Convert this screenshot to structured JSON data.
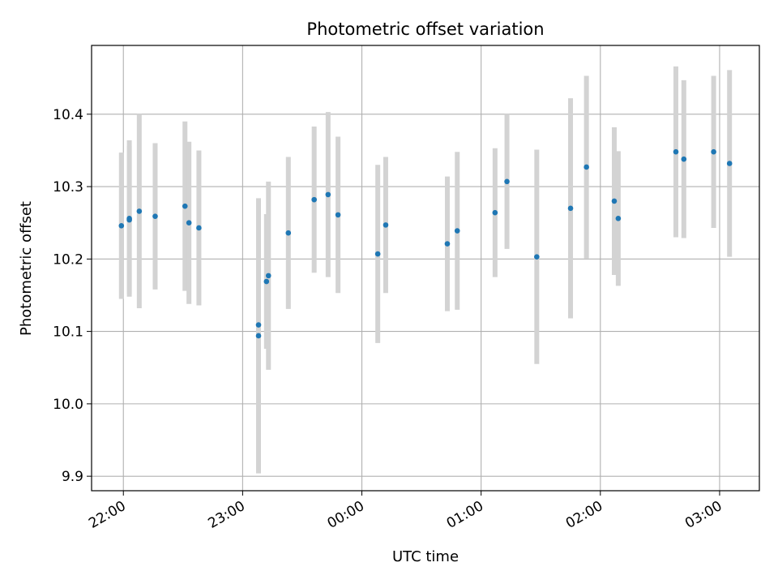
{
  "chart_data": {
    "type": "scatter",
    "title": "Photometric offset variation",
    "xlabel": "UTC time",
    "ylabel": "Photometric offset",
    "grid": true,
    "x_ticks": [
      "22:00",
      "23:00",
      "00:00",
      "01:00",
      "02:00",
      "03:00"
    ],
    "x_tick_minutes": [
      0,
      60,
      120,
      180,
      240,
      300
    ],
    "xlim_minutes": [
      -16,
      320
    ],
    "y_ticks": [
      "9.9",
      "10.0",
      "10.1",
      "10.2",
      "10.3",
      "10.4"
    ],
    "y_tick_values": [
      9.9,
      10.0,
      10.1,
      10.2,
      10.3,
      10.4
    ],
    "ylim": [
      9.88,
      10.495
    ],
    "marker_color": "#1f77b4",
    "errorbar_color": "#d3d3d3",
    "points": [
      {
        "t": "21:59",
        "y": 10.246,
        "err": 0.101
      },
      {
        "t": "22:03",
        "y": 10.256,
        "err": 0.108
      },
      {
        "t": "22:03",
        "y": 10.254,
        "err": 0.102
      },
      {
        "t": "22:08",
        "y": 10.266,
        "err": 0.134
      },
      {
        "t": "22:16",
        "y": 10.259,
        "err": 0.101
      },
      {
        "t": "22:31",
        "y": 10.273,
        "err": 0.117
      },
      {
        "t": "22:33",
        "y": 10.25,
        "err": 0.112
      },
      {
        "t": "22:38",
        "y": 10.243,
        "err": 0.107
      },
      {
        "t": "23:08",
        "y": 10.109,
        "err": 0.148
      },
      {
        "t": "23:08",
        "y": 10.094,
        "err": 0.19
      },
      {
        "t": "23:12",
        "y": 10.169,
        "err": 0.093
      },
      {
        "t": "23:13",
        "y": 10.177,
        "err": 0.13
      },
      {
        "t": "23:23",
        "y": 10.236,
        "err": 0.105
      },
      {
        "t": "23:36",
        "y": 10.282,
        "err": 0.101
      },
      {
        "t": "23:43",
        "y": 10.289,
        "err": 0.114
      },
      {
        "t": "23:48",
        "y": 10.261,
        "err": 0.108
      },
      {
        "t": "00:08",
        "y": 10.207,
        "err": 0.123
      },
      {
        "t": "00:12",
        "y": 10.247,
        "err": 0.094
      },
      {
        "t": "00:43",
        "y": 10.221,
        "err": 0.093
      },
      {
        "t": "00:48",
        "y": 10.239,
        "err": 0.109
      },
      {
        "t": "01:07",
        "y": 10.264,
        "err": 0.089
      },
      {
        "t": "01:13",
        "y": 10.307,
        "err": 0.093
      },
      {
        "t": "01:28",
        "y": 10.203,
        "err": 0.148
      },
      {
        "t": "01:45",
        "y": 10.27,
        "err": 0.152
      },
      {
        "t": "01:53",
        "y": 10.327,
        "err": 0.126
      },
      {
        "t": "02:07",
        "y": 10.28,
        "err": 0.102
      },
      {
        "t": "02:09",
        "y": 10.256,
        "err": 0.093
      },
      {
        "t": "02:38",
        "y": 10.348,
        "err": 0.118
      },
      {
        "t": "02:42",
        "y": 10.338,
        "err": 0.109
      },
      {
        "t": "02:57",
        "y": 10.348,
        "err": 0.105
      },
      {
        "t": "03:05",
        "y": 10.332,
        "err": 0.129
      }
    ]
  }
}
